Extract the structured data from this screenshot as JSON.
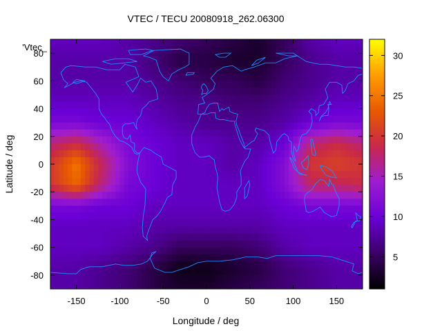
{
  "chart_data": {
    "type": "heatmap",
    "title": "VTEC / TECU 20080918_262.06300",
    "xlabel": "Longitude / deg",
    "ylabel": "Latitude / deg",
    "series_label": "'Vtec_",
    "xlim": [
      -180,
      180
    ],
    "ylim": [
      -90,
      90
    ],
    "xticks": [
      -150,
      -100,
      -50,
      0,
      50,
      100,
      150
    ],
    "yticks": [
      -80,
      -60,
      -40,
      -20,
      0,
      20,
      40,
      60,
      80
    ],
    "colorbar": {
      "range": [
        1,
        32
      ],
      "ticks": [
        5,
        10,
        15,
        20,
        25,
        30
      ]
    },
    "grid": false,
    "coastline_color": "#1e90ff",
    "palette": [
      "#000000",
      "#3b0066",
      "#6a00d6",
      "#9e1dd1",
      "#c8284a",
      "#e85a00",
      "#ff9e00",
      "#ffff00"
    ],
    "grid_x": [
      -180,
      -150,
      -120,
      -90,
      -60,
      -30,
      0,
      30,
      60,
      90,
      120,
      150,
      180
    ],
    "grid_y": [
      90,
      75,
      60,
      45,
      30,
      15,
      0,
      -15,
      -30,
      -45,
      -60,
      -75,
      -90
    ],
    "values": [
      [
        9,
        9,
        9,
        8,
        7,
        6,
        5,
        4,
        3,
        5,
        8,
        9,
        9
      ],
      [
        8,
        8,
        8,
        8,
        6,
        4,
        4,
        3,
        3,
        5,
        7,
        8,
        8
      ],
      [
        8,
        8,
        8,
        8,
        7,
        6,
        5,
        5,
        4,
        6,
        7,
        8,
        8
      ],
      [
        9,
        9,
        9,
        9,
        8,
        7,
        7,
        6,
        6,
        7,
        8,
        9,
        9
      ],
      [
        11,
        11,
        10,
        10,
        9,
        8,
        7,
        7,
        7,
        8,
        10,
        11,
        11
      ],
      [
        17,
        19,
        15,
        11,
        10,
        9,
        9,
        8,
        8,
        10,
        17,
        19,
        17
      ],
      [
        20,
        25,
        18,
        12,
        10,
        9,
        9,
        8,
        9,
        12,
        20,
        21,
        20
      ],
      [
        20,
        24,
        17,
        11,
        10,
        9,
        9,
        9,
        9,
        12,
        18,
        18,
        19
      ],
      [
        11,
        11,
        10,
        10,
        9,
        9,
        9,
        9,
        9,
        10,
        11,
        11,
        11
      ],
      [
        9,
        9,
        9,
        9,
        8,
        8,
        8,
        8,
        8,
        9,
        9,
        9,
        9
      ],
      [
        9,
        9,
        9,
        8,
        7,
        5,
        5,
        5,
        6,
        8,
        9,
        9,
        9
      ],
      [
        8,
        8,
        7,
        6,
        4,
        2,
        2,
        3,
        4,
        6,
        7,
        8,
        8
      ],
      [
        8,
        8,
        7,
        6,
        4,
        3,
        3,
        4,
        5,
        6,
        7,
        8,
        8
      ]
    ]
  }
}
